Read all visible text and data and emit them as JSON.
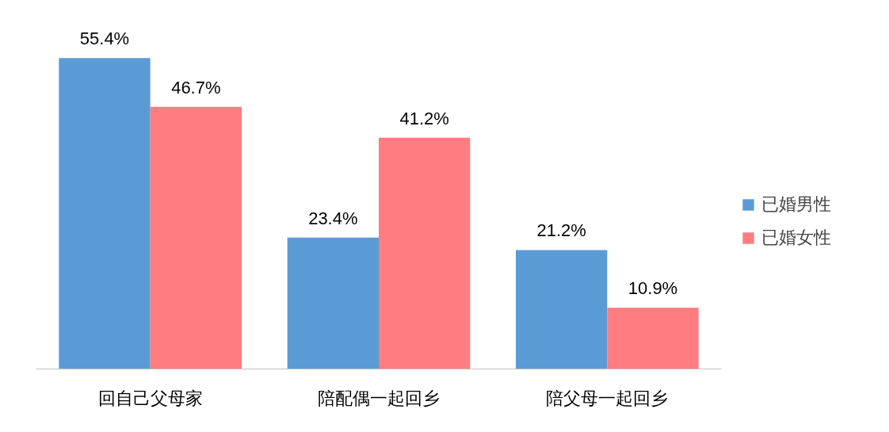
{
  "chart_data": {
    "type": "bar",
    "categories": [
      "回自己父母家",
      "陪配偶一起回乡",
      "陪父母一起回乡"
    ],
    "series": [
      {
        "name": "已婚男性",
        "color": "#5b9bd5",
        "values": [
          55.4,
          23.4,
          21.2
        ],
        "value_labels": [
          "55.4%",
          "23.4%",
          "21.2%"
        ]
      },
      {
        "name": "已婚女性",
        "color": "#ff7c80",
        "values": [
          46.7,
          41.2,
          10.9
        ],
        "value_labels": [
          "46.7%",
          "41.2%",
          "10.9%"
        ]
      }
    ],
    "legend": "right",
    "grid": false
  }
}
